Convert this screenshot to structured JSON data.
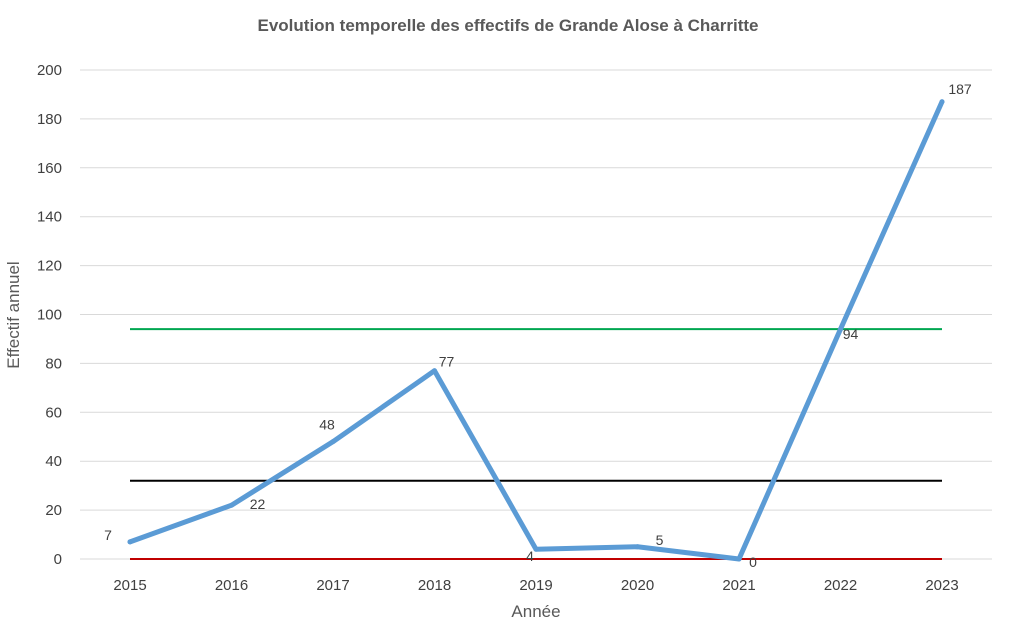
{
  "chart_data": {
    "type": "line",
    "title": "Evolution temporelle des effectifs de Grande Alose à Charritte",
    "xlabel": "Année",
    "ylabel": "Effectif annuel",
    "categories": [
      "2015",
      "2016",
      "2017",
      "2018",
      "2019",
      "2020",
      "2021",
      "2022",
      "2023"
    ],
    "ylim": [
      0,
      200
    ],
    "yticks": [
      "0",
      "20",
      "40",
      "60",
      "80",
      "100",
      "120",
      "140",
      "160",
      "180",
      "200"
    ],
    "grid": true,
    "series": [
      {
        "values": [
          7,
          22,
          48,
          77,
          4,
          5,
          0,
          94,
          187
        ],
        "data_labels": [
          "7",
          "22",
          "48",
          "77",
          "4",
          "5",
          "0",
          "94",
          "187"
        ],
        "color": "#5b9bd5"
      }
    ],
    "reference_lines": [
      {
        "value": 94,
        "color": "#00a651"
      },
      {
        "value": 32,
        "color": "#000000"
      },
      {
        "value": 0,
        "color": "#c00000"
      }
    ]
  }
}
